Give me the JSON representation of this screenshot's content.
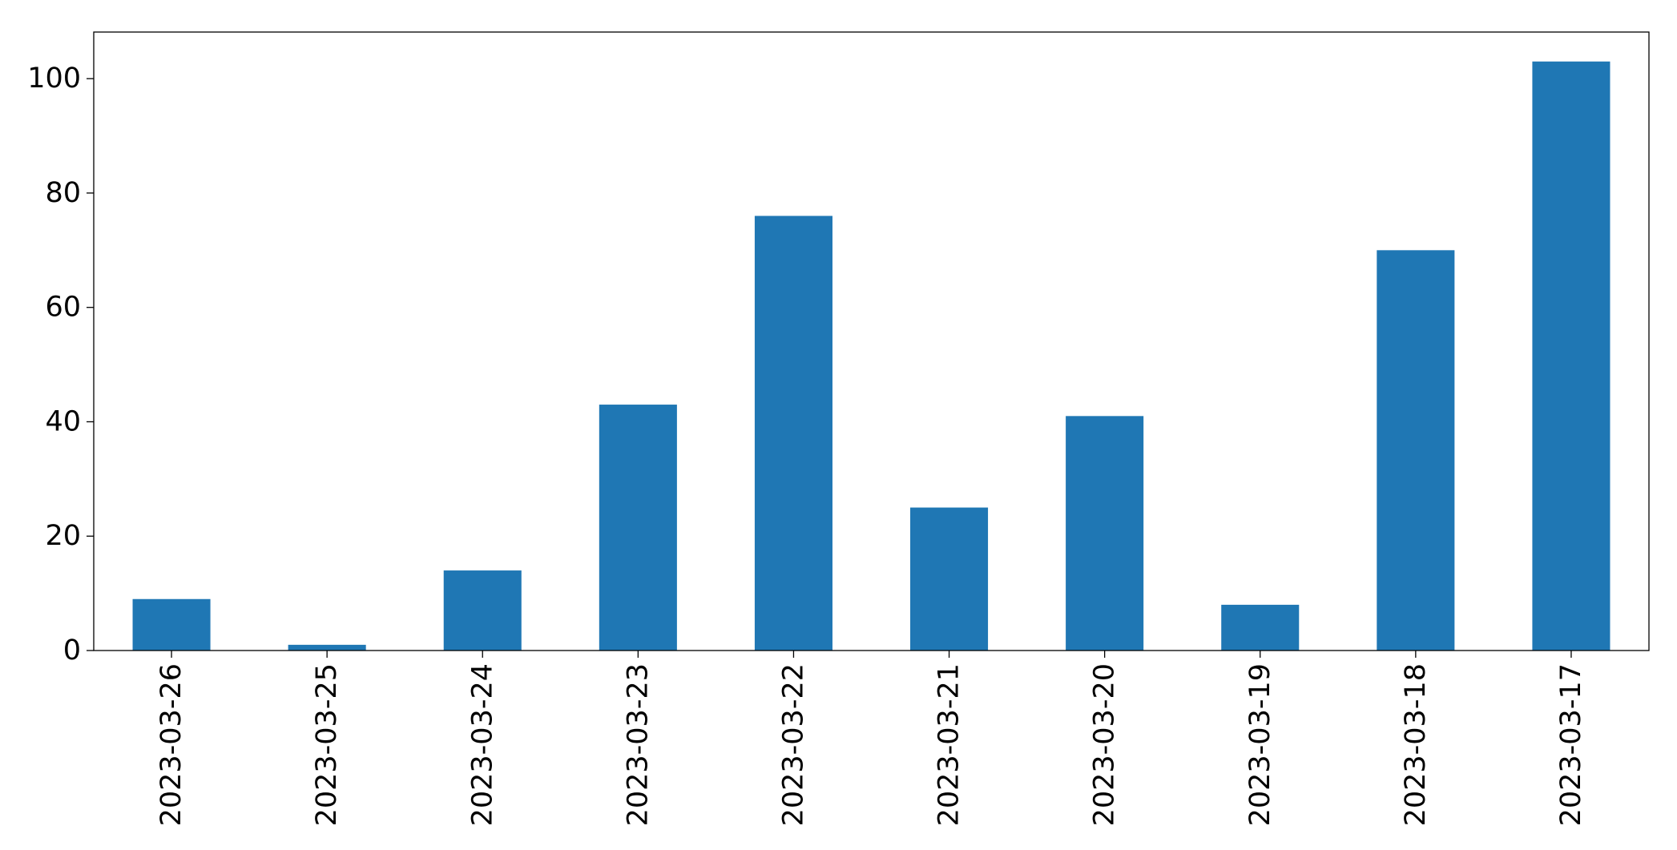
{
  "chart_data": {
    "type": "bar",
    "title": "",
    "xlabel": "",
    "ylabel": "",
    "categories": [
      "2023-03-26",
      "2023-03-25",
      "2023-03-24",
      "2023-03-23",
      "2023-03-22",
      "2023-03-21",
      "2023-03-20",
      "2023-03-19",
      "2023-03-18",
      "2023-03-17"
    ],
    "values": [
      9,
      1,
      14,
      43,
      76,
      25,
      41,
      8,
      70,
      103
    ],
    "ylim": [
      0,
      108.15
    ],
    "yticks": [
      0,
      20,
      40,
      60,
      80,
      100
    ],
    "bar_color": "#1f77b4",
    "grid": false,
    "legend": "none"
  }
}
